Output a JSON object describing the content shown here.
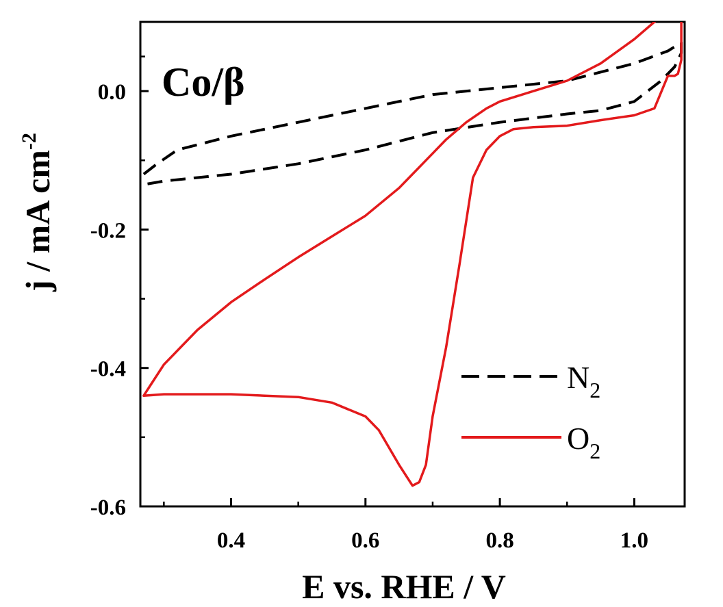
{
  "chart_data": {
    "type": "line",
    "title": "",
    "panel_label": "Co/β",
    "xlabel": "E vs. RHE / V",
    "ylabel": "j / mA cm",
    "ylabel_superscript": "-2",
    "xlim": [
      0.265,
      1.075
    ],
    "ylim": [
      -0.6,
      0.1
    ],
    "xticks": [
      0.4,
      0.6,
      0.8,
      1.0
    ],
    "xtick_labels": [
      "0.4",
      "0.6",
      "0.8",
      "1.0"
    ],
    "yticks": [
      0.0,
      -0.2,
      -0.4,
      -0.6
    ],
    "ytick_labels": [
      "0.0",
      "-0.2",
      "-0.4",
      "-0.6"
    ],
    "grid": false,
    "legend_position": "bottom-right",
    "series": [
      {
        "name": "N",
        "name_subscript": "2",
        "color": "#000000",
        "style": "dashed",
        "x": [
          0.27,
          0.29,
          0.32,
          0.4,
          0.5,
          0.6,
          0.7,
          0.8,
          0.9,
          1.0,
          1.05,
          1.07,
          1.07,
          1.06,
          1.04,
          1.0,
          0.95,
          0.9,
          0.8,
          0.7,
          0.6,
          0.5,
          0.4,
          0.3,
          0.27
        ],
        "y": [
          -0.12,
          -0.105,
          -0.085,
          -0.065,
          -0.045,
          -0.025,
          -0.005,
          0.005,
          0.015,
          0.04,
          0.058,
          0.07,
          0.055,
          0.035,
          0.015,
          -0.015,
          -0.028,
          -0.033,
          -0.045,
          -0.06,
          -0.085,
          -0.105,
          -0.12,
          -0.13,
          -0.135
        ]
      },
      {
        "name": "O",
        "name_subscript": "2",
        "color": "#e31a1c",
        "style": "solid",
        "x": [
          0.27,
          0.28,
          0.3,
          0.35,
          0.4,
          0.45,
          0.5,
          0.55,
          0.6,
          0.65,
          0.69,
          0.72,
          0.75,
          0.78,
          0.8,
          0.85,
          0.9,
          0.95,
          1.0,
          1.03,
          1.05,
          1.06,
          1.07,
          1.07,
          1.065,
          1.06,
          1.05,
          1.03,
          1.0,
          0.95,
          0.9,
          0.85,
          0.82,
          0.8,
          0.78,
          0.76,
          0.74,
          0.72,
          0.7,
          0.69,
          0.68,
          0.67,
          0.65,
          0.62,
          0.6,
          0.55,
          0.5,
          0.45,
          0.4,
          0.3,
          0.27
        ],
        "y": [
          -0.44,
          -0.425,
          -0.395,
          -0.345,
          -0.305,
          -0.272,
          -0.24,
          -0.21,
          -0.18,
          -0.14,
          -0.1,
          -0.07,
          -0.045,
          -0.025,
          -0.015,
          0.0,
          0.015,
          0.04,
          0.075,
          0.1,
          0.12,
          0.13,
          0.14,
          0.045,
          0.025,
          0.022,
          0.022,
          -0.025,
          -0.035,
          -0.042,
          -0.05,
          -0.052,
          -0.055,
          -0.065,
          -0.085,
          -0.125,
          -0.25,
          -0.37,
          -0.47,
          -0.54,
          -0.565,
          -0.57,
          -0.54,
          -0.49,
          -0.47,
          -0.45,
          -0.442,
          -0.44,
          -0.438,
          -0.438,
          -0.44
        ]
      }
    ]
  }
}
